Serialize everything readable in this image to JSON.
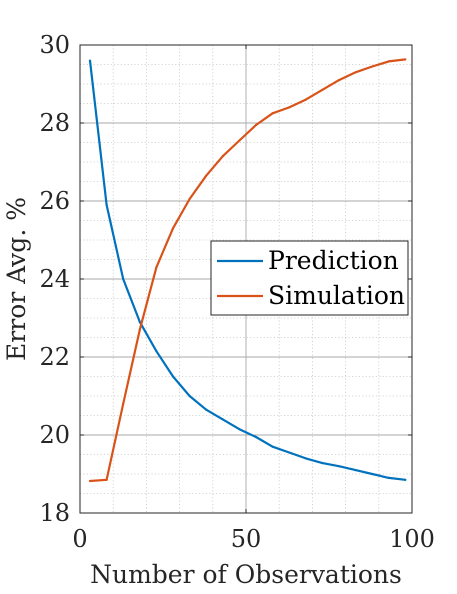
{
  "chart_data": {
    "type": "line",
    "xlabel": "Number of Observations",
    "ylabel": "Error Avg. %",
    "xlim": [
      0,
      100
    ],
    "ylim": [
      18,
      30
    ],
    "xticks": [
      0,
      50,
      100
    ],
    "yticks": [
      18,
      20,
      22,
      24,
      26,
      28,
      30
    ],
    "grid": true,
    "minor_grid": true,
    "legend_position": "center-right",
    "series": [
      {
        "name": "Prediction",
        "color": "#0072BD",
        "x": [
          3,
          8,
          13,
          18,
          23,
          28,
          33,
          38,
          43,
          48,
          53,
          58,
          63,
          68,
          73,
          78,
          83,
          88,
          93,
          98
        ],
        "y": [
          29.6,
          25.9,
          24.0,
          22.9,
          22.15,
          21.5,
          21.0,
          20.65,
          20.4,
          20.15,
          19.95,
          19.7,
          19.55,
          19.4,
          19.28,
          19.2,
          19.1,
          19.0,
          18.9,
          18.85
        ]
      },
      {
        "name": "Simulation",
        "color": "#D95319",
        "x": [
          3,
          8,
          13,
          18,
          23,
          28,
          33,
          38,
          43,
          48,
          53,
          58,
          63,
          68,
          73,
          78,
          83,
          88,
          93,
          98
        ],
        "y": [
          18.82,
          18.85,
          20.8,
          22.7,
          24.3,
          25.3,
          26.05,
          26.65,
          27.15,
          27.55,
          27.95,
          28.25,
          28.4,
          28.6,
          28.85,
          29.1,
          29.3,
          29.45,
          29.58,
          29.63
        ]
      }
    ]
  }
}
